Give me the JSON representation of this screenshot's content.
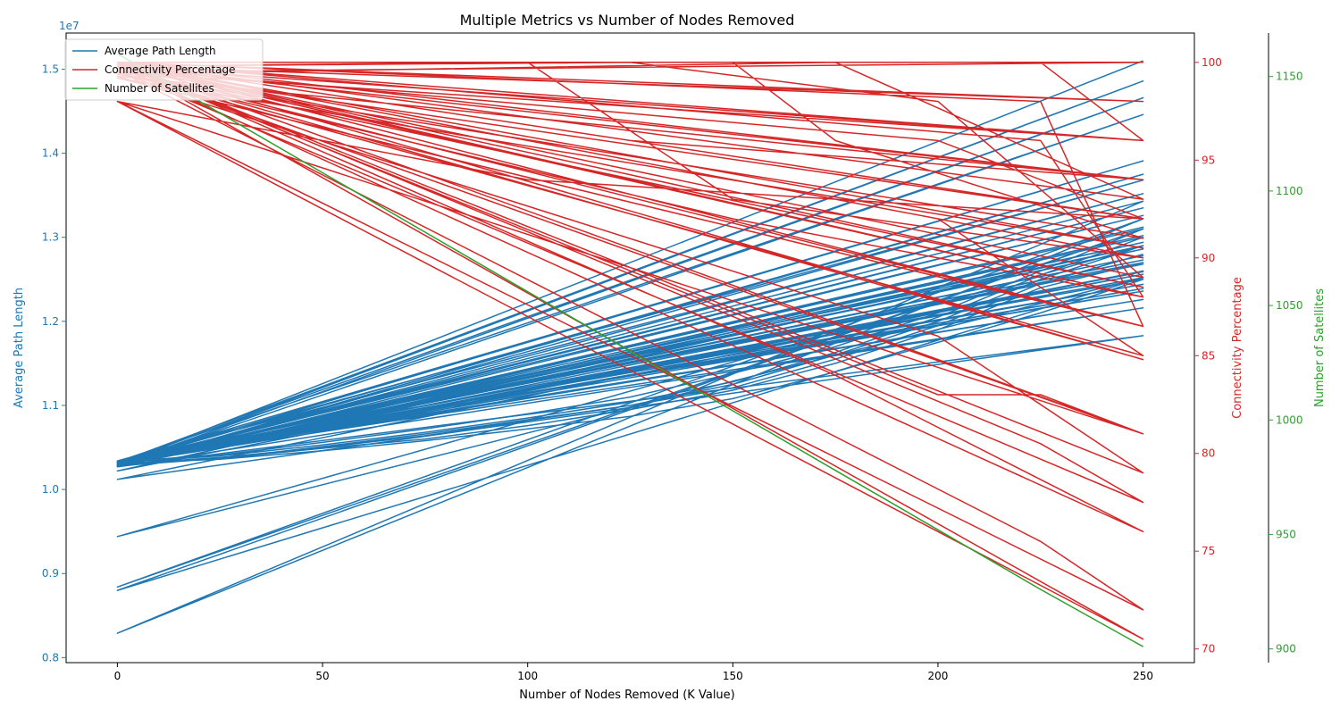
{
  "chart_data": {
    "type": "line",
    "title": "Multiple Metrics vs Number of Nodes Removed",
    "xlabel": "Number of Nodes Removed (K Value)",
    "xlim": [
      -12.5,
      262.5
    ],
    "xticks": [
      0,
      50,
      100,
      150,
      200,
      250
    ],
    "grid": false,
    "legend_position": "top-left",
    "axes": [
      {
        "id": "left",
        "label": "Average Path Length",
        "color": "#1f77b4",
        "offset_label": "1e7",
        "ylim": [
          0.794,
          1.543
        ],
        "ticks": [
          0.8,
          0.9,
          1.0,
          1.1,
          1.2,
          1.3,
          1.4,
          1.5
        ],
        "tick_labels": [
          "0.8",
          "0.9",
          "1.0",
          "1.1",
          "1.2",
          "1.3",
          "1.4",
          "1.5"
        ]
      },
      {
        "id": "right",
        "label": "Connectivity Percentage",
        "color": "#d62728",
        "ylim": [
          69.3,
          101.5
        ],
        "ticks": [
          70,
          75,
          80,
          85,
          90,
          95,
          100
        ],
        "tick_labels": [
          "70",
          "75",
          "80",
          "85",
          "90",
          "95",
          "100"
        ]
      },
      {
        "id": "far-right",
        "label": "Number of Satellites",
        "color": "#2ca02c",
        "ylim": [
          894,
          1169
        ],
        "ticks": [
          900,
          950,
          1000,
          1050,
          1100,
          1150
        ],
        "tick_labels": [
          "900",
          "950",
          "1000",
          "1050",
          "1100",
          "1150"
        ]
      }
    ],
    "series": [
      {
        "name": "Average Path Length",
        "axis": "left",
        "color": "#1f77b4",
        "points": [
          [
            250,
            1.51
          ],
          [
            0,
            1.03
          ],
          [
            250,
            1.486
          ],
          [
            0,
            1.032
          ],
          [
            250,
            1.466
          ],
          [
            0,
            1.029
          ],
          [
            250,
            1.446
          ],
          [
            0,
            1.033
          ],
          [
            250,
            1.391
          ],
          [
            0,
            1.031
          ],
          [
            250,
            1.375
          ],
          [
            0,
            1.028
          ],
          [
            250,
            1.368
          ],
          [
            0,
            1.034
          ],
          [
            250,
            1.352
          ],
          [
            0,
            1.03
          ],
          [
            250,
            1.335
          ],
          [
            0,
            1.032
          ],
          [
            250,
            1.326
          ],
          [
            0,
            1.029
          ],
          [
            250,
            1.312
          ],
          [
            0,
            1.031
          ],
          [
            250,
            1.302
          ],
          [
            0,
            1.027
          ],
          [
            250,
            1.294
          ],
          [
            0,
            1.033
          ],
          [
            250,
            1.286
          ],
          [
            0,
            1.03
          ],
          [
            250,
            1.278
          ],
          [
            0,
            1.032
          ],
          [
            250,
            1.268
          ],
          [
            0,
            1.028
          ],
          [
            250,
            1.259
          ],
          [
            0,
            1.031
          ],
          [
            250,
            1.252
          ],
          [
            0,
            1.029
          ],
          [
            250,
            1.244
          ],
          [
            0,
            1.034
          ],
          [
            250,
            1.236
          ],
          [
            0,
            1.03
          ],
          [
            250,
            1.226
          ],
          [
            0,
            1.032
          ],
          [
            250,
            1.216
          ],
          [
            0,
            1.027
          ],
          [
            250,
            1.183
          ],
          [
            0,
            1.012
          ],
          [
            250,
            1.26
          ],
          [
            0,
            1.022
          ],
          [
            250,
            1.29
          ],
          [
            0,
            0.944
          ],
          [
            250,
            1.252
          ],
          [
            0,
            0.88
          ],
          [
            250,
            1.31
          ],
          [
            0,
            0.884
          ],
          [
            250,
            1.322
          ],
          [
            0,
            0.829
          ],
          [
            250,
            1.343
          ],
          [
            0,
            1.031
          ],
          [
            250,
            1.239
          ],
          [
            0,
            1.033
          ],
          [
            250,
            1.256
          ],
          [
            0,
            1.029
          ],
          [
            250,
            1.273
          ],
          [
            0,
            1.031
          ]
        ]
      },
      {
        "name": "Average Path Length",
        "axis": "left",
        "color": "#1f77b4",
        "points": [
          [
            0,
            1.03
          ],
          [
            25,
            1.038
          ],
          [
            50,
            1.05
          ],
          [
            75,
            1.064
          ],
          [
            100,
            1.082
          ],
          [
            125,
            1.1
          ],
          [
            150,
            1.125
          ],
          [
            175,
            1.16
          ],
          [
            200,
            1.2
          ],
          [
            225,
            1.25
          ],
          [
            250,
            1.29
          ],
          [
            0,
            1.033
          ],
          [
            25,
            1.041
          ],
          [
            50,
            1.056
          ],
          [
            75,
            1.072
          ],
          [
            100,
            1.09
          ],
          [
            125,
            1.11
          ],
          [
            150,
            1.138
          ],
          [
            175,
            1.17
          ],
          [
            200,
            1.21
          ],
          [
            225,
            1.26
          ],
          [
            250,
            1.31
          ],
          [
            0,
            1.029
          ],
          [
            25,
            1.037
          ],
          [
            50,
            1.049
          ],
          [
            75,
            1.06
          ],
          [
            100,
            1.076
          ],
          [
            125,
            1.095
          ],
          [
            150,
            1.118
          ],
          [
            175,
            1.15
          ],
          [
            200,
            1.19
          ],
          [
            225,
            1.24
          ],
          [
            250,
            1.27
          ],
          [
            0,
            1.031
          ],
          [
            25,
            1.036
          ],
          [
            50,
            1.046
          ],
          [
            75,
            1.058
          ],
          [
            100,
            1.072
          ],
          [
            125,
            1.087
          ],
          [
            150,
            1.108
          ],
          [
            175,
            1.14
          ],
          [
            200,
            1.175
          ],
          [
            225,
            1.21
          ],
          [
            250,
            1.25
          ],
          [
            0,
            1.032
          ],
          [
            25,
            1.04
          ],
          [
            50,
            1.053
          ],
          [
            75,
            1.068
          ],
          [
            100,
            1.085
          ],
          [
            125,
            1.104
          ],
          [
            150,
            1.128
          ],
          [
            175,
            1.163
          ],
          [
            200,
            1.205
          ],
          [
            225,
            1.255
          ],
          [
            250,
            1.3
          ],
          [
            0,
            1.028
          ],
          [
            25,
            1.037
          ],
          [
            50,
            1.051
          ],
          [
            75,
            1.066
          ],
          [
            100,
            1.083
          ],
          [
            125,
            1.1
          ],
          [
            150,
            1.121
          ],
          [
            175,
            1.155
          ],
          [
            200,
            1.195
          ],
          [
            225,
            1.245
          ],
          [
            250,
            1.28
          ]
        ]
      },
      {
        "name": "Connectivity Percentage",
        "axis": "right",
        "color": "#d62728",
        "points": [
          [
            0,
            100
          ],
          [
            250,
            100
          ],
          [
            0,
            99.5
          ],
          [
            250,
            96
          ],
          [
            0,
            100
          ],
          [
            250,
            98
          ],
          [
            0,
            99.8
          ],
          [
            250,
            94
          ],
          [
            0,
            100
          ],
          [
            250,
            92
          ],
          [
            0,
            99.6
          ],
          [
            250,
            88.5
          ],
          [
            0,
            100
          ],
          [
            250,
            90.5
          ],
          [
            0,
            99.2
          ],
          [
            250,
            86.5
          ],
          [
            0,
            100
          ],
          [
            250,
            84.8
          ],
          [
            0,
            99.7
          ],
          [
            250,
            81
          ],
          [
            0,
            98
          ],
          [
            100,
            94
          ],
          [
            250,
            92
          ],
          [
            0,
            100
          ],
          [
            75,
            100
          ],
          [
            225,
            100
          ],
          [
            250,
            96
          ],
          [
            0,
            99.8
          ],
          [
            125,
            100
          ],
          [
            200,
            98
          ],
          [
            250,
            89
          ],
          [
            0,
            100
          ],
          [
            150,
            100
          ],
          [
            175,
            96
          ],
          [
            250,
            91
          ],
          [
            0,
            99.4
          ],
          [
            175,
            100
          ],
          [
            250,
            93
          ],
          [
            0,
            100
          ],
          [
            225,
            96
          ],
          [
            250,
            88
          ],
          [
            0,
            99.9
          ],
          [
            200,
            83
          ],
          [
            225,
            83
          ],
          [
            250,
            81
          ],
          [
            0,
            100
          ],
          [
            225,
            80.5
          ],
          [
            250,
            77.5
          ],
          [
            0,
            99.6
          ],
          [
            225,
            75.5
          ],
          [
            250,
            72
          ],
          [
            0,
            98
          ],
          [
            250,
            70.5
          ],
          [
            0,
            100
          ],
          [
            200,
            92
          ],
          [
            250,
            85
          ],
          [
            0,
            99.5
          ],
          [
            150,
            92
          ],
          [
            250,
            88
          ],
          [
            0,
            100
          ],
          [
            125,
            96
          ],
          [
            250,
            94
          ],
          [
            0,
            99.3
          ],
          [
            200,
            86
          ],
          [
            250,
            79
          ],
          [
            0,
            100
          ],
          [
            175,
            84
          ],
          [
            250,
            76
          ],
          [
            0,
            99.8
          ],
          [
            100,
            100
          ],
          [
            150,
            93
          ],
          [
            250,
            90
          ],
          [
            0,
            100
          ],
          [
            225,
            98
          ],
          [
            250,
            86.5
          ],
          [
            0,
            99.7
          ],
          [
            200,
            96
          ],
          [
            250,
            92
          ],
          [
            0,
            100
          ],
          [
            250,
            89
          ]
        ]
      },
      {
        "name": "Number of Satellites",
        "axis": "far-right",
        "color": "#2ca02c",
        "points": [
          [
            0,
            1160
          ],
          [
            25,
            1134
          ],
          [
            50,
            1108
          ],
          [
            75,
            1082
          ],
          [
            100,
            1056
          ],
          [
            125,
            1030
          ],
          [
            150,
            1004
          ],
          [
            175,
            978
          ],
          [
            200,
            952
          ],
          [
            225,
            926
          ],
          [
            250,
            901
          ]
        ]
      }
    ]
  }
}
